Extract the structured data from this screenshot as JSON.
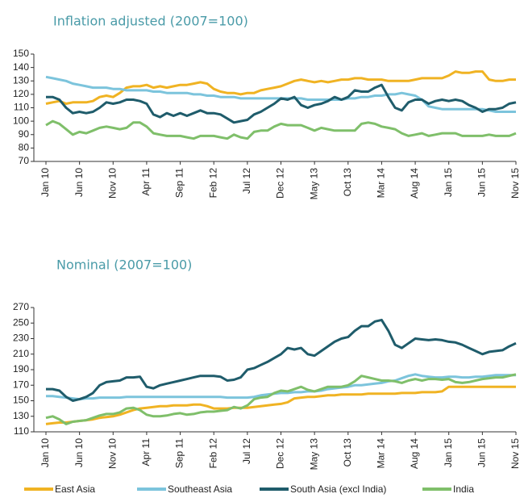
{
  "chart_data": [
    {
      "type": "line",
      "title": "Inflation adjusted (2007=100)",
      "categories": [
        "Jan 10",
        null,
        null,
        null,
        null,
        "Jun 10",
        null,
        null,
        null,
        null,
        "Nov 10",
        null,
        null,
        null,
        null,
        "Apr 11",
        null,
        null,
        null,
        null,
        "Sep 11",
        null,
        null,
        null,
        null,
        "Feb 12",
        null,
        null,
        null,
        null,
        "Jul 12",
        null,
        null,
        null,
        null,
        "Dec 12",
        null,
        null,
        null,
        null,
        "May 13",
        null,
        null,
        null,
        null,
        "Oct 13",
        null,
        null,
        null,
        null,
        "Mar 14",
        null,
        null,
        null,
        null,
        "Aug 14",
        null,
        null,
        null,
        null,
        "Jan 15",
        null,
        null,
        null,
        null,
        "Jun 15",
        null,
        null,
        null,
        null,
        "Nov 15"
      ],
      "ylim": [
        70,
        150
      ],
      "yticks": [
        70,
        80,
        90,
        100,
        110,
        120,
        130,
        140,
        150
      ],
      "series": [
        {
          "color": "#f0b323",
          "values": [
            113,
            114,
            115,
            113,
            114,
            114,
            114,
            115,
            118,
            119,
            118,
            121,
            125,
            126,
            126,
            127,
            125,
            126,
            125,
            126,
            127,
            127,
            128,
            129,
            128,
            124,
            122,
            121,
            121,
            120,
            121,
            121,
            123,
            124,
            125,
            126,
            128,
            130,
            131,
            130,
            129,
            130,
            129,
            130,
            131,
            131,
            132,
            132,
            131,
            131,
            131,
            130,
            130,
            130,
            130,
            131,
            132,
            132,
            132,
            132,
            134,
            137,
            136,
            136,
            137,
            137,
            131,
            130,
            130,
            131,
            131
          ]
        },
        {
          "color": "#7cc4dc",
          "values": [
            133,
            132,
            131,
            130,
            128,
            127,
            126,
            125,
            125,
            125,
            124,
            124,
            123,
            123,
            123,
            123,
            122,
            122,
            121,
            121,
            121,
            121,
            120,
            120,
            119,
            119,
            118,
            118,
            118,
            117,
            117,
            117,
            117,
            117,
            117,
            117,
            117,
            117,
            117,
            116,
            116,
            116,
            116,
            116,
            116,
            117,
            117,
            118,
            118,
            119,
            119,
            120,
            120,
            121,
            120,
            119,
            116,
            111,
            110,
            109,
            109,
            109,
            109,
            109,
            109,
            109,
            108,
            107,
            107,
            107,
            107
          ]
        },
        {
          "color": "#1f5c6b",
          "values": [
            118,
            118,
            116,
            110,
            106,
            107,
            106,
            107,
            110,
            114,
            113,
            114,
            116,
            116,
            115,
            113,
            105,
            103,
            106,
            104,
            106,
            104,
            106,
            108,
            106,
            106,
            105,
            102,
            99,
            100,
            101,
            105,
            107,
            110,
            113,
            117,
            116,
            118,
            112,
            110,
            112,
            113,
            115,
            118,
            116,
            118,
            123,
            122,
            122,
            125,
            127,
            118,
            110,
            108,
            114,
            116,
            116,
            113,
            115,
            116,
            115,
            116,
            115,
            112,
            110,
            107,
            109,
            109,
            110,
            113,
            114
          ]
        },
        {
          "color": "#7fbf6a",
          "values": [
            97,
            100,
            98,
            94,
            90,
            92,
            91,
            93,
            95,
            96,
            95,
            94,
            95,
            99,
            99,
            96,
            91,
            90,
            89,
            89,
            89,
            88,
            87,
            89,
            89,
            89,
            88,
            87,
            90,
            88,
            87,
            92,
            93,
            93,
            96,
            98,
            97,
            97,
            97,
            95,
            93,
            95,
            94,
            93,
            93,
            93,
            93,
            98,
            99,
            98,
            96,
            95,
            94,
            91,
            89,
            90,
            91,
            89,
            90,
            91,
            91,
            91,
            89,
            89,
            89,
            89,
            90,
            89,
            89,
            89,
            91
          ]
        }
      ]
    },
    {
      "type": "line",
      "title": "Nominal (2007=100)",
      "categories": [
        "Jan 10",
        null,
        null,
        null,
        null,
        "Jun 10",
        null,
        null,
        null,
        null,
        "Nov 10",
        null,
        null,
        null,
        null,
        "Apr 11",
        null,
        null,
        null,
        null,
        "Sep 11",
        null,
        null,
        null,
        null,
        "Feb 12",
        null,
        null,
        null,
        null,
        "Jul 12",
        null,
        null,
        null,
        null,
        "Dec 12",
        null,
        null,
        null,
        null,
        "May 13",
        null,
        null,
        null,
        null,
        "Oct 13",
        null,
        null,
        null,
        null,
        "Mar 14",
        null,
        null,
        null,
        null,
        "Aug 14",
        null,
        null,
        null,
        null,
        "Jan 15",
        null,
        null,
        null,
        null,
        "Jun 15",
        null,
        null,
        null,
        null,
        "Nov 15"
      ],
      "ylim": [
        110,
        270
      ],
      "yticks": [
        110,
        130,
        150,
        170,
        190,
        210,
        230,
        250,
        270
      ],
      "series": [
        {
          "name": "East Asia",
          "color": "#f0b323",
          "values": [
            120,
            121,
            122,
            122,
            123,
            124,
            125,
            126,
            128,
            129,
            130,
            132,
            135,
            138,
            140,
            141,
            142,
            143,
            143,
            144,
            144,
            144,
            145,
            145,
            143,
            140,
            140,
            140,
            141,
            141,
            141,
            142,
            143,
            144,
            145,
            146,
            148,
            153,
            154,
            155,
            155,
            156,
            157,
            157,
            158,
            158,
            158,
            158,
            159,
            159,
            159,
            159,
            159,
            160,
            160,
            160,
            161,
            161,
            161,
            162,
            168,
            168,
            168,
            168,
            168,
            168,
            168,
            168,
            168,
            168,
            168
          ]
        },
        {
          "name": "Southeast Asia",
          "color": "#7cc4dc",
          "values": [
            156,
            156,
            155,
            154,
            153,
            152,
            153,
            153,
            154,
            154,
            154,
            154,
            155,
            155,
            155,
            155,
            155,
            155,
            155,
            155,
            155,
            155,
            155,
            155,
            155,
            155,
            155,
            154,
            154,
            154,
            154,
            155,
            157,
            158,
            159,
            160,
            160,
            161,
            161,
            162,
            162,
            163,
            165,
            166,
            167,
            168,
            170,
            170,
            171,
            172,
            173,
            175,
            176,
            179,
            182,
            184,
            182,
            181,
            180,
            180,
            181,
            181,
            180,
            180,
            181,
            181,
            182,
            183,
            183,
            183,
            183
          ]
        },
        {
          "name": "South Asia (excl India)",
          "color": "#1f5c6b",
          "values": [
            165,
            165,
            163,
            155,
            150,
            152,
            155,
            160,
            170,
            174,
            175,
            176,
            180,
            180,
            181,
            168,
            166,
            170,
            172,
            174,
            176,
            178,
            180,
            182,
            182,
            182,
            181,
            176,
            177,
            180,
            190,
            192,
            196,
            200,
            205,
            210,
            218,
            216,
            218,
            210,
            208,
            214,
            220,
            226,
            230,
            232,
            240,
            246,
            246,
            252,
            254,
            240,
            222,
            218,
            224,
            230,
            229,
            228,
            229,
            228,
            226,
            225,
            222,
            218,
            214,
            210,
            213,
            214,
            215,
            220,
            224
          ]
        },
        {
          "name": "India",
          "color": "#7fbf6a",
          "values": [
            128,
            130,
            126,
            120,
            123,
            124,
            125,
            128,
            131,
            133,
            133,
            135,
            140,
            141,
            138,
            132,
            130,
            130,
            131,
            133,
            134,
            132,
            133,
            135,
            136,
            136,
            137,
            138,
            142,
            140,
            144,
            152,
            154,
            155,
            160,
            163,
            162,
            165,
            168,
            164,
            162,
            165,
            168,
            168,
            168,
            170,
            175,
            182,
            180,
            178,
            176,
            176,
            175,
            173,
            176,
            178,
            176,
            178,
            178,
            177,
            178,
            174,
            173,
            174,
            176,
            178,
            179,
            180,
            180,
            182,
            184
          ]
        }
      ]
    }
  ]
}
